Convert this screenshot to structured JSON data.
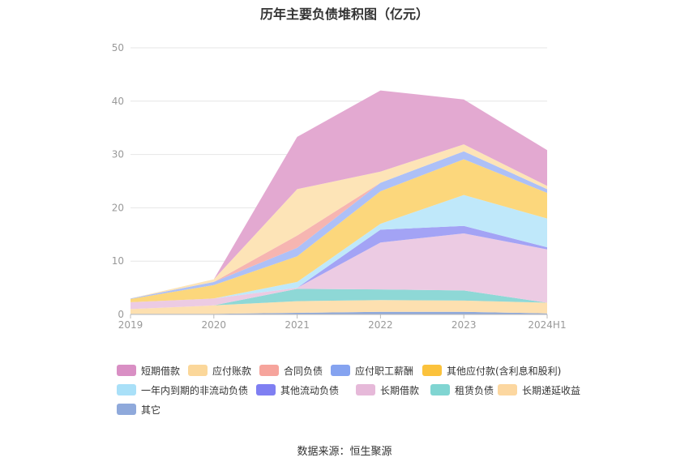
{
  "chart_data": {
    "type": "area",
    "stacked": true,
    "title": "历年主要负债堆积图（亿元）",
    "categories": [
      "2019",
      "2020",
      "2021",
      "2022",
      "2023",
      "2024H1"
    ],
    "ylim": [
      0,
      50
    ],
    "yticks": [
      0,
      10,
      20,
      30,
      40,
      50
    ],
    "grid": true,
    "legend_position": "bottom",
    "series": [
      {
        "name": "其它",
        "color": "#8fa9db",
        "values": [
          0.1,
          0.1,
          0.3,
          0.5,
          0.5,
          0.2
        ]
      },
      {
        "name": "长期递延收益",
        "color": "#fde0b0",
        "values": [
          0.9,
          1.6,
          2.2,
          2.2,
          2.1,
          2.0
        ]
      },
      {
        "name": "租赁负债",
        "color": "#8ed8d6",
        "values": [
          0.0,
          0.0,
          2.3,
          2.0,
          1.9,
          0.0
        ]
      },
      {
        "name": "长期借款",
        "color": "#eccbe3",
        "values": [
          1.3,
          1.3,
          0.2,
          8.8,
          10.7,
          10.0
        ]
      },
      {
        "name": "其他流动负债",
        "color": "#a3a3f5",
        "values": [
          0.0,
          0.0,
          0.0,
          2.4,
          1.4,
          0.4
        ]
      },
      {
        "name": "一年内到期的非流动负债",
        "color": "#bfe8fa",
        "values": [
          0.0,
          0.0,
          1.1,
          1.1,
          5.8,
          5.4
        ]
      },
      {
        "name": "其他应付款(含利息和股利)",
        "color": "#fcd77c",
        "values": [
          0.6,
          2.5,
          4.8,
          6.1,
          6.7,
          4.8
        ]
      },
      {
        "name": "应付职工薪酬",
        "color": "#adc0f7",
        "values": [
          0.1,
          0.6,
          1.6,
          1.6,
          1.5,
          0.7
        ]
      },
      {
        "name": "合同负债",
        "color": "#f6b5b1",
        "values": [
          0.0,
          0.0,
          2.3,
          0.0,
          0.0,
          0.0
        ]
      },
      {
        "name": "应付账款",
        "color": "#fde4b7",
        "values": [
          0.0,
          0.5,
          8.7,
          2.1,
          1.3,
          0.6
        ]
      },
      {
        "name": "短期借款",
        "color": "#e3a9d1",
        "values": [
          0.0,
          0.0,
          9.8,
          15.2,
          8.4,
          6.7
        ]
      }
    ]
  },
  "legend": [
    {
      "name": "短期借款",
      "color": "#d98fc4"
    },
    {
      "name": "应付账款",
      "color": "#fbd79a"
    },
    {
      "name": "合同负债",
      "color": "#f6a49c"
    },
    {
      "name": "应付职工薪酬",
      "color": "#85a3f0"
    },
    {
      "name": "其他应付款(含利息和股利)",
      "color": "#fbc23c"
    },
    {
      "name": "一年内到期的非流动负债",
      "color": "#a9e0f8"
    },
    {
      "name": "其他流动负债",
      "color": "#7f7ff2"
    },
    {
      "name": "长期借款",
      "color": "#e6b9d9"
    },
    {
      "name": "租赁负债",
      "color": "#80d5d2"
    },
    {
      "name": "长期递延收益",
      "color": "#fcd7a0"
    },
    {
      "name": "其它",
      "color": "#8fa9db"
    }
  ],
  "source": "数据来源：恒生聚源"
}
